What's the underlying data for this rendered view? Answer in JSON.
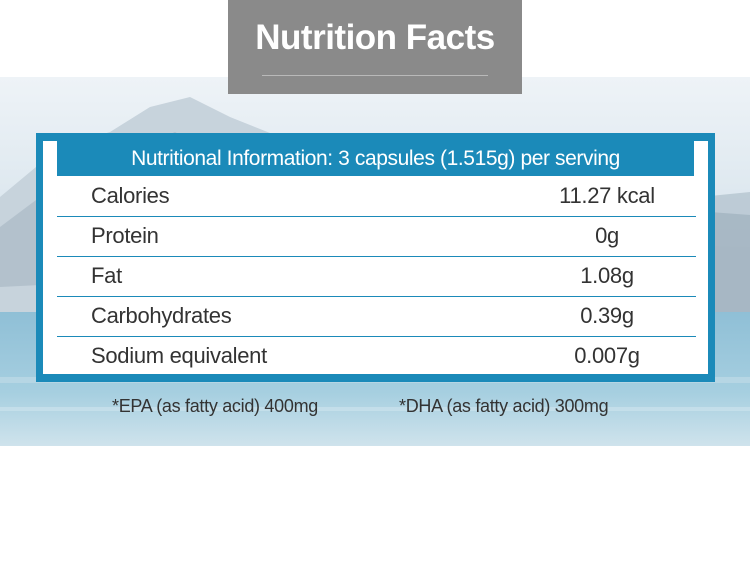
{
  "title": "Nutrition Facts",
  "table": {
    "header": "Nutritional Information: 3 capsules (1.515g) per serving",
    "rows": [
      {
        "label": "Calories",
        "value": "11.27 kcal"
      },
      {
        "label": "Protein",
        "value": "0g"
      },
      {
        "label": "Fat",
        "value": "1.08g"
      },
      {
        "label": "Carbohydrates",
        "value": "0.39g"
      },
      {
        "label": "Sodium equivalent",
        "value": "0.007g"
      }
    ]
  },
  "footnotes": {
    "epa": "*EPA (as fatty acid) 400mg",
    "dha": "*DHA (as fatty acid) 300mg"
  },
  "colors": {
    "accent": "#1b8ab9",
    "title_bg": "#8a8a8a",
    "text": "#333333"
  }
}
